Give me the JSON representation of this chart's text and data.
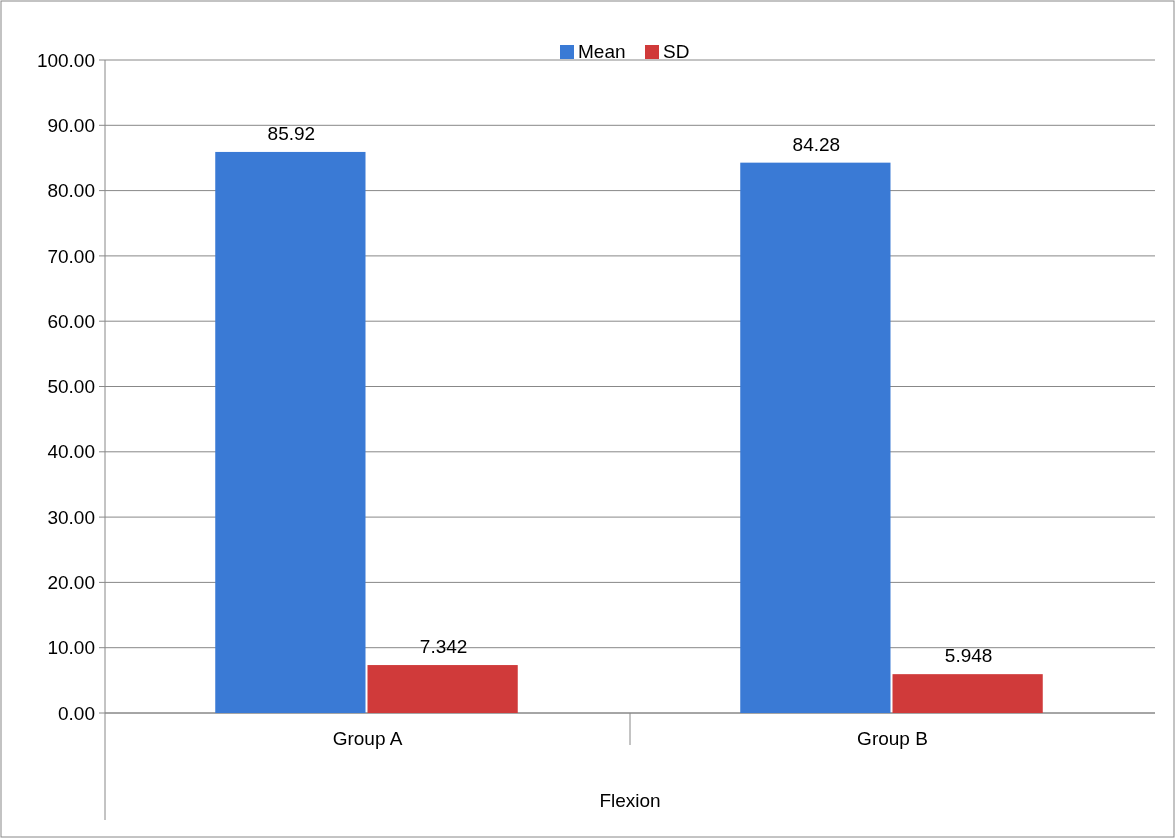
{
  "chart_data": {
    "type": "bar",
    "categories": [
      "Group A",
      "Group B"
    ],
    "xlabel": "Flexion",
    "series": [
      {
        "name": "Mean",
        "color": "#3a7ad5",
        "values": [
          85.92,
          84.28
        ]
      },
      {
        "name": "SD",
        "color": "#d03a3a",
        "values": [
          7.342,
          5.948
        ]
      }
    ],
    "value_labels": [
      [
        "85.92",
        "84.28"
      ],
      [
        "7.342",
        "5.948"
      ]
    ],
    "ylim": [
      0,
      100
    ],
    "yticks": [
      {
        "value": 0,
        "label": "0.00"
      },
      {
        "value": 10,
        "label": "10.00"
      },
      {
        "value": 20,
        "label": "20.00"
      },
      {
        "value": 30,
        "label": "30.00"
      },
      {
        "value": 40,
        "label": "40.00"
      },
      {
        "value": 50,
        "label": "50.00"
      },
      {
        "value": 60,
        "label": "60.00"
      },
      {
        "value": 70,
        "label": "70.00"
      },
      {
        "value": 80,
        "label": "80.00"
      },
      {
        "value": 90,
        "label": "90.00"
      },
      {
        "value": 100,
        "label": "100.00"
      }
    ],
    "grid": "y",
    "legend": "top"
  }
}
